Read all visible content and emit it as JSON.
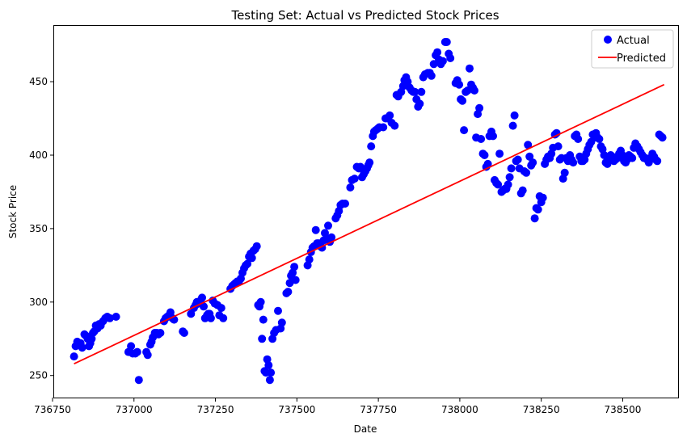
{
  "chart_data": {
    "type": "scatter",
    "title": "Testing Set: Actual vs Predicted Stock Prices",
    "xlabel": "Date",
    "ylabel": "Stock Price",
    "xlim": [
      736755,
      738670
    ],
    "ylim": [
      235,
      488
    ],
    "x_ticks": [
      736750,
      737000,
      737250,
      737500,
      737750,
      738000,
      738250,
      738500
    ],
    "y_ticks": [
      250,
      300,
      350,
      400,
      450
    ],
    "grid": false,
    "legend_position": "top-right",
    "series": [
      {
        "name": "Actual",
        "type": "scatter",
        "color": "#0000ff",
        "points": [
          [
            736816,
            263
          ],
          [
            736821,
            270
          ],
          [
            736826,
            273
          ],
          [
            736831,
            271
          ],
          [
            736836,
            272
          ],
          [
            736841,
            269
          ],
          [
            736848,
            278
          ],
          [
            736853,
            277
          ],
          [
            736858,
            275
          ],
          [
            736862,
            270
          ],
          [
            736866,
            272
          ],
          [
            736870,
            275
          ],
          [
            736874,
            279
          ],
          [
            736878,
            280
          ],
          [
            736883,
            284
          ],
          [
            736888,
            282
          ],
          [
            736893,
            285
          ],
          [
            736898,
            284
          ],
          [
            736905,
            287
          ],
          [
            736912,
            289
          ],
          [
            736918,
            290
          ],
          [
            736926,
            289
          ],
          [
            736945,
            290
          ],
          [
            736983,
            266
          ],
          [
            736991,
            270
          ],
          [
            736996,
            265
          ],
          [
            737004,
            265
          ],
          [
            737010,
            266
          ],
          [
            737015,
            247
          ],
          [
            737038,
            266
          ],
          [
            737042,
            264
          ],
          [
            737050,
            271
          ],
          [
            737054,
            273
          ],
          [
            737058,
            276
          ],
          [
            737064,
            279
          ],
          [
            737070,
            279
          ],
          [
            737075,
            278
          ],
          [
            737081,
            279
          ],
          [
            737092,
            287
          ],
          [
            737097,
            289
          ],
          [
            737102,
            290
          ],
          [
            737108,
            291
          ],
          [
            737112,
            293
          ],
          [
            737118,
            289
          ],
          [
            737123,
            288
          ],
          [
            737150,
            280
          ],
          [
            737154,
            279
          ],
          [
            737175,
            292
          ],
          [
            737184,
            296
          ],
          [
            737189,
            298
          ],
          [
            737193,
            300
          ],
          [
            737198,
            299
          ],
          [
            737204,
            301
          ],
          [
            737209,
            303
          ],
          [
            737214,
            297
          ],
          [
            737218,
            289
          ],
          [
            737224,
            291
          ],
          [
            737228,
            292
          ],
          [
            737232,
            292
          ],
          [
            737236,
            289
          ],
          [
            737242,
            301
          ],
          [
            737248,
            299
          ],
          [
            737256,
            298
          ],
          [
            737262,
            291
          ],
          [
            737268,
            296
          ],
          [
            737274,
            289
          ],
          [
            737296,
            309
          ],
          [
            737302,
            311
          ],
          [
            737307,
            312
          ],
          [
            737312,
            313
          ],
          [
            737317,
            314
          ],
          [
            737322,
            314
          ],
          [
            737328,
            316
          ],
          [
            737333,
            320
          ],
          [
            737338,
            323
          ],
          [
            737343,
            325
          ],
          [
            737348,
            326
          ],
          [
            737353,
            331
          ],
          [
            737358,
            333
          ],
          [
            737362,
            330
          ],
          [
            737367,
            335
          ],
          [
            737372,
            336
          ],
          [
            737377,
            338
          ],
          [
            737381,
            298
          ],
          [
            737385,
            297
          ],
          [
            737389,
            300
          ],
          [
            737393,
            275
          ],
          [
            737397,
            288
          ],
          [
            737401,
            253
          ],
          [
            737405,
            252
          ],
          [
            737409,
            261
          ],
          [
            737413,
            257
          ],
          [
            737417,
            247
          ],
          [
            737420,
            252
          ],
          [
            737425,
            275
          ],
          [
            737430,
            279
          ],
          [
            737436,
            281
          ],
          [
            737442,
            294
          ],
          [
            737450,
            282
          ],
          [
            737454,
            286
          ],
          [
            737468,
            306
          ],
          [
            737473,
            307
          ],
          [
            737478,
            313
          ],
          [
            737482,
            318
          ],
          [
            737487,
            320
          ],
          [
            737492,
            324
          ],
          [
            737496,
            315
          ],
          [
            737533,
            325
          ],
          [
            737538,
            329
          ],
          [
            737543,
            334
          ],
          [
            737548,
            337
          ],
          [
            737553,
            338
          ],
          [
            737558,
            349
          ],
          [
            737562,
            340
          ],
          [
            737567,
            340
          ],
          [
            737572,
            338
          ],
          [
            737577,
            337
          ],
          [
            737582,
            342
          ],
          [
            737586,
            347
          ],
          [
            737591,
            343
          ],
          [
            737596,
            352
          ],
          [
            737601,
            341
          ],
          [
            737606,
            344
          ],
          [
            737619,
            357
          ],
          [
            737624,
            359
          ],
          [
            737629,
            362
          ],
          [
            737634,
            366
          ],
          [
            737640,
            367
          ],
          [
            737648,
            367
          ],
          [
            737664,
            378
          ],
          [
            737669,
            383
          ],
          [
            737677,
            384
          ],
          [
            737684,
            392
          ],
          [
            737690,
            391
          ],
          [
            737695,
            392
          ],
          [
            737700,
            385
          ],
          [
            737705,
            387
          ],
          [
            737710,
            389
          ],
          [
            737715,
            391
          ],
          [
            737719,
            393
          ],
          [
            737723,
            395
          ],
          [
            737728,
            406
          ],
          [
            737733,
            413
          ],
          [
            737737,
            416
          ],
          [
            737742,
            417
          ],
          [
            737748,
            418
          ],
          [
            737753,
            419
          ],
          [
            737765,
            419
          ],
          [
            737772,
            425
          ],
          [
            737778,
            425
          ],
          [
            737785,
            427
          ],
          [
            737791,
            422
          ],
          [
            737800,
            420
          ],
          [
            737806,
            441
          ],
          [
            737811,
            440
          ],
          [
            737820,
            443
          ],
          [
            737826,
            447
          ],
          [
            737830,
            451
          ],
          [
            737835,
            453
          ],
          [
            737840,
            450
          ],
          [
            737846,
            446
          ],
          [
            737852,
            444
          ],
          [
            737857,
            443
          ],
          [
            737862,
            443
          ],
          [
            737867,
            438
          ],
          [
            737872,
            433
          ],
          [
            737877,
            435
          ],
          [
            737882,
            443
          ],
          [
            737888,
            453
          ],
          [
            737893,
            455
          ],
          [
            737902,
            456
          ],
          [
            737908,
            456
          ],
          [
            737913,
            454
          ],
          [
            737920,
            462
          ],
          [
            737926,
            468
          ],
          [
            737931,
            470
          ],
          [
            737936,
            465
          ],
          [
            737942,
            462
          ],
          [
            737948,
            464
          ],
          [
            737955,
            477
          ],
          [
            737960,
            477
          ],
          [
            737966,
            469
          ],
          [
            737971,
            466
          ],
          [
            737987,
            449
          ],
          [
            737992,
            451
          ],
          [
            737998,
            448
          ],
          [
            738003,
            438
          ],
          [
            738008,
            437
          ],
          [
            738013,
            417
          ],
          [
            738018,
            443
          ],
          [
            738024,
            444
          ],
          [
            738030,
            459
          ],
          [
            738035,
            448
          ],
          [
            738040,
            446
          ],
          [
            738045,
            444
          ],
          [
            738050,
            412
          ],
          [
            738055,
            428
          ],
          [
            738060,
            432
          ],
          [
            738065,
            411
          ],
          [
            738071,
            401
          ],
          [
            738076,
            400
          ],
          [
            738081,
            392
          ],
          [
            738086,
            394
          ],
          [
            738091,
            413
          ],
          [
            738097,
            416
          ],
          [
            738102,
            413
          ],
          [
            738107,
            383
          ],
          [
            738112,
            381
          ],
          [
            738117,
            380
          ],
          [
            738122,
            401
          ],
          [
            738128,
            375
          ],
          [
            738133,
            376
          ],
          [
            738138,
            377
          ],
          [
            738143,
            377
          ],
          [
            738148,
            380
          ],
          [
            738153,
            385
          ],
          [
            738158,
            391
          ],
          [
            738163,
            420
          ],
          [
            738168,
            427
          ],
          [
            738173,
            396
          ],
          [
            738178,
            397
          ],
          [
            738183,
            391
          ],
          [
            738188,
            374
          ],
          [
            738193,
            376
          ],
          [
            738198,
            389
          ],
          [
            738204,
            388
          ],
          [
            738209,
            407
          ],
          [
            738214,
            399
          ],
          [
            738219,
            393
          ],
          [
            738224,
            395
          ],
          [
            738230,
            357
          ],
          [
            738235,
            364
          ],
          [
            738240,
            363
          ],
          [
            738245,
            372
          ],
          [
            738250,
            368
          ],
          [
            738255,
            371
          ],
          [
            738261,
            394
          ],
          [
            738266,
            397
          ],
          [
            738271,
            399
          ],
          [
            738276,
            398
          ],
          [
            738281,
            401
          ],
          [
            738286,
            405
          ],
          [
            738292,
            414
          ],
          [
            738297,
            415
          ],
          [
            738302,
            406
          ],
          [
            738307,
            397
          ],
          [
            738312,
            398
          ],
          [
            738317,
            384
          ],
          [
            738322,
            388
          ],
          [
            738327,
            398
          ],
          [
            738332,
            396
          ],
          [
            738338,
            400
          ],
          [
            738343,
            397
          ],
          [
            738348,
            395
          ],
          [
            738353,
            413
          ],
          [
            738358,
            414
          ],
          [
            738363,
            411
          ],
          [
            738368,
            399
          ],
          [
            738373,
            396
          ],
          [
            738378,
            396
          ],
          [
            738383,
            397
          ],
          [
            738388,
            401
          ],
          [
            738393,
            404
          ],
          [
            738398,
            407
          ],
          [
            738403,
            409
          ],
          [
            738408,
            414
          ],
          [
            738413,
            412
          ],
          [
            738418,
            415
          ],
          [
            738423,
            412
          ],
          [
            738428,
            411
          ],
          [
            738433,
            406
          ],
          [
            738438,
            404
          ],
          [
            738443,
            400
          ],
          [
            738448,
            395
          ],
          [
            738453,
            394
          ],
          [
            738458,
            398
          ],
          [
            738463,
            400
          ],
          [
            738468,
            399
          ],
          [
            738473,
            396
          ],
          [
            738478,
            397
          ],
          [
            738484,
            398
          ],
          [
            738489,
            401
          ],
          [
            738494,
            403
          ],
          [
            738499,
            400
          ],
          [
            738504,
            396
          ],
          [
            738509,
            395
          ],
          [
            738514,
            397
          ],
          [
            738519,
            400
          ],
          [
            738524,
            399
          ],
          [
            738529,
            398
          ],
          [
            738534,
            405
          ],
          [
            738539,
            408
          ],
          [
            738545,
            406
          ],
          [
            738550,
            404
          ],
          [
            738555,
            402
          ],
          [
            738560,
            400
          ],
          [
            738565,
            398
          ],
          [
            738570,
            398
          ],
          [
            738575,
            397
          ],
          [
            738580,
            395
          ],
          [
            738585,
            398
          ],
          [
            738591,
            401
          ],
          [
            738596,
            399
          ],
          [
            738601,
            397
          ],
          [
            738606,
            396
          ],
          [
            738612,
            414
          ],
          [
            738617,
            413
          ],
          [
            738622,
            412
          ]
        ]
      },
      {
        "name": "Predicted",
        "type": "line",
        "color": "#ff0000",
        "points": [
          [
            736816,
            258
          ],
          [
            738627,
            448
          ]
        ]
      }
    ]
  }
}
